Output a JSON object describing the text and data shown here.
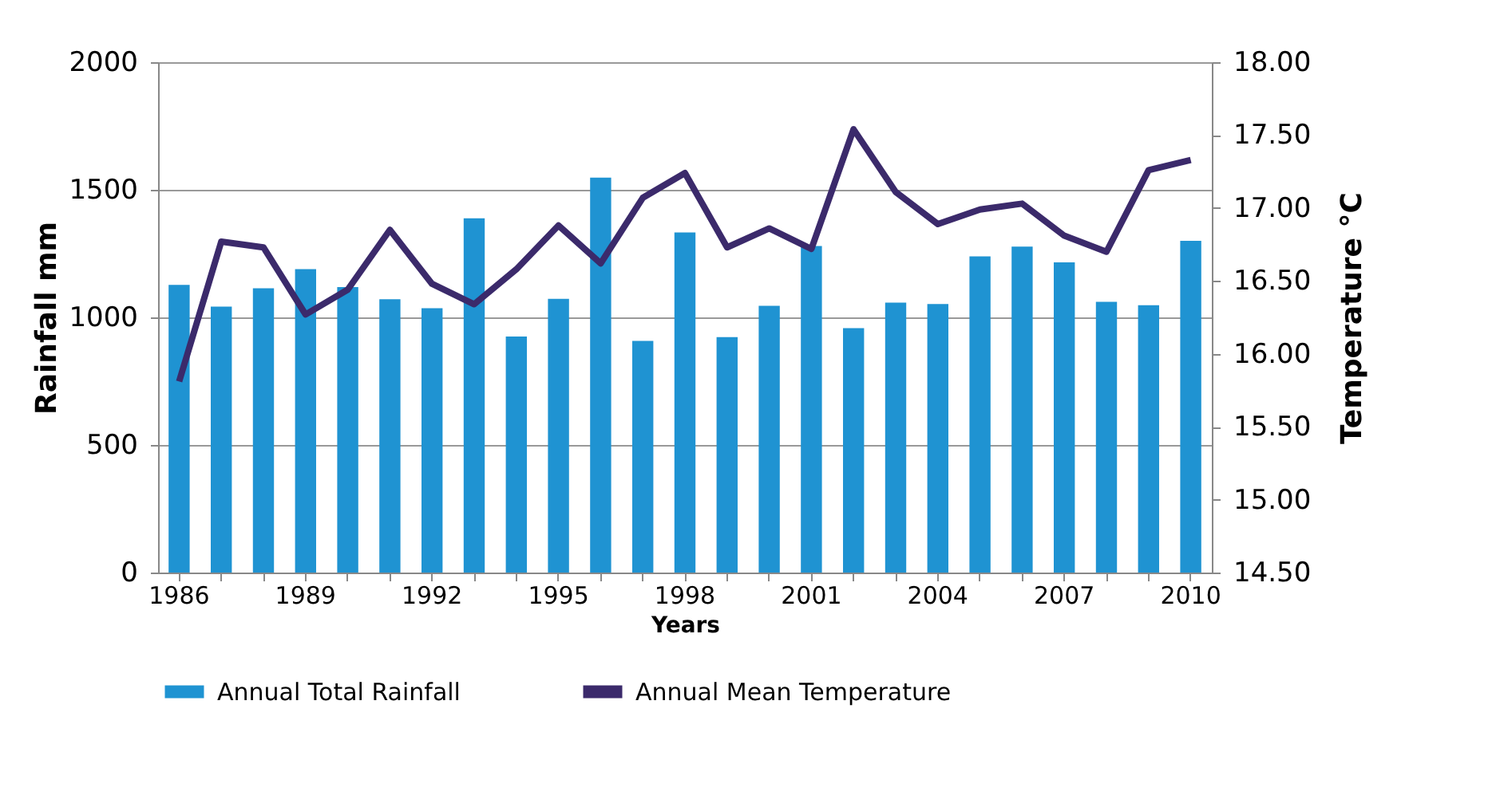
{
  "chart_data": {
    "type": "bar",
    "xlabel": "Years",
    "ylabel": "Rainfall mm",
    "y2label": "Temperature °C",
    "categories": [
      "1986",
      null,
      null,
      "1989",
      null,
      null,
      "1992",
      null,
      null,
      "1995",
      null,
      null,
      "1998",
      null,
      null,
      "2001",
      null,
      null,
      "2004",
      null,
      null,
      "2007",
      null,
      null,
      "2010"
    ],
    "series": [
      {
        "name": "Annual Total Rainfall",
        "color": "#1f93d2",
        "values": [
          1127,
          1042,
          1114,
          1189,
          1119,
          1071,
          1036,
          1388,
          925,
          1073,
          1548,
          908,
          1333,
          923,
          1045,
          1280,
          958,
          1058,
          1052,
          1239,
          1277,
          1216,
          1061,
          1048,
          1300
        ]
      },
      {
        "name": "Annual Mean Temperature",
        "type": "line",
        "axis": "y2",
        "color": "#3b2a6b",
        "values": [
          15.81,
          16.77,
          16.73,
          16.27,
          16.44,
          16.85,
          16.48,
          16.34,
          16.58,
          16.88,
          16.62,
          17.07,
          17.24,
          16.73,
          16.86,
          16.72,
          17.54,
          17.11,
          16.89,
          16.99,
          17.03,
          16.81,
          16.7,
          17.26,
          17.33
        ]
      }
    ],
    "ylim": [
      0,
      2000
    ],
    "yticks": [
      0,
      500,
      1000,
      1500,
      2000
    ],
    "y2lim": [
      14.5,
      18
    ],
    "y2ticks": [
      {
        "value": 14.5,
        "label": "14.50"
      },
      {
        "value": 15,
        "label": "15.00"
      },
      {
        "value": 15.5,
        "label": "15.50"
      },
      {
        "value": 16,
        "label": "16.00"
      },
      {
        "value": 16.5,
        "label": "16.50"
      },
      {
        "value": 17,
        "label": "17.00"
      },
      {
        "value": 17.5,
        "label": "17.50"
      },
      {
        "value": 18,
        "label": "18.00"
      }
    ],
    "grid": "y",
    "legend": "bottom",
    "marker": "none",
    "line_style": "solid"
  }
}
